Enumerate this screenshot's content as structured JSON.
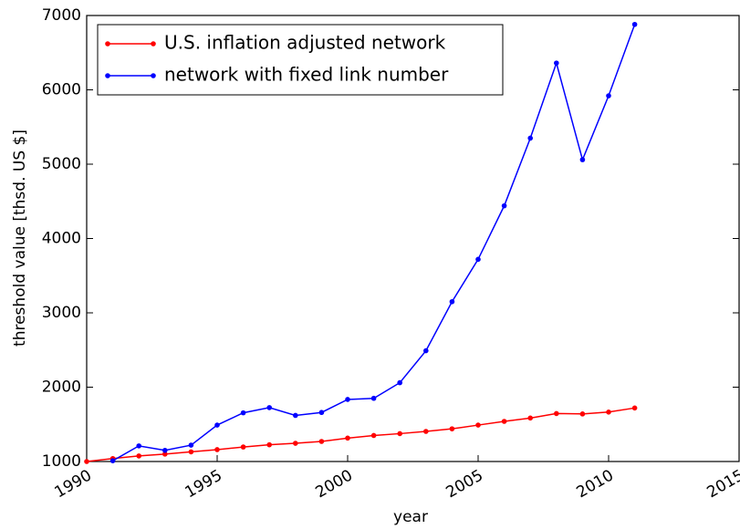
{
  "chart_data": {
    "type": "line",
    "xlabel": "year",
    "ylabel": "threshold value [thsd. US $]",
    "x": [
      1990,
      1991,
      1992,
      1993,
      1994,
      1995,
      1996,
      1997,
      1998,
      1999,
      2000,
      2001,
      2002,
      2003,
      2004,
      2005,
      2006,
      2007,
      2008,
      2009,
      2010,
      2011
    ],
    "series": [
      {
        "name": "U.S. inflation adjusted network",
        "color": "#ff0000",
        "values": [
          1000,
          1040,
          1075,
          1100,
          1130,
          1160,
          1195,
          1225,
          1245,
          1270,
          1315,
          1350,
          1375,
          1405,
          1440,
          1490,
          1540,
          1585,
          1645,
          1640,
          1665,
          1720
        ]
      },
      {
        "name": "network with fixed link number",
        "color": "#0000ff",
        "values": [
          null,
          1010,
          1210,
          1150,
          1220,
          1490,
          1655,
          1725,
          1620,
          1660,
          1835,
          1850,
          2060,
          2490,
          3150,
          3720,
          4440,
          5350,
          6360,
          5060,
          5920,
          6880
        ]
      }
    ],
    "xlim": [
      1990,
      2015
    ],
    "xticks": [
      1990,
      1995,
      2000,
      2005,
      2010,
      2015
    ],
    "ylim": [
      1000,
      7000
    ],
    "yticks": [
      1000,
      2000,
      3000,
      4000,
      5000,
      6000,
      7000
    ],
    "legend": "upper left"
  }
}
